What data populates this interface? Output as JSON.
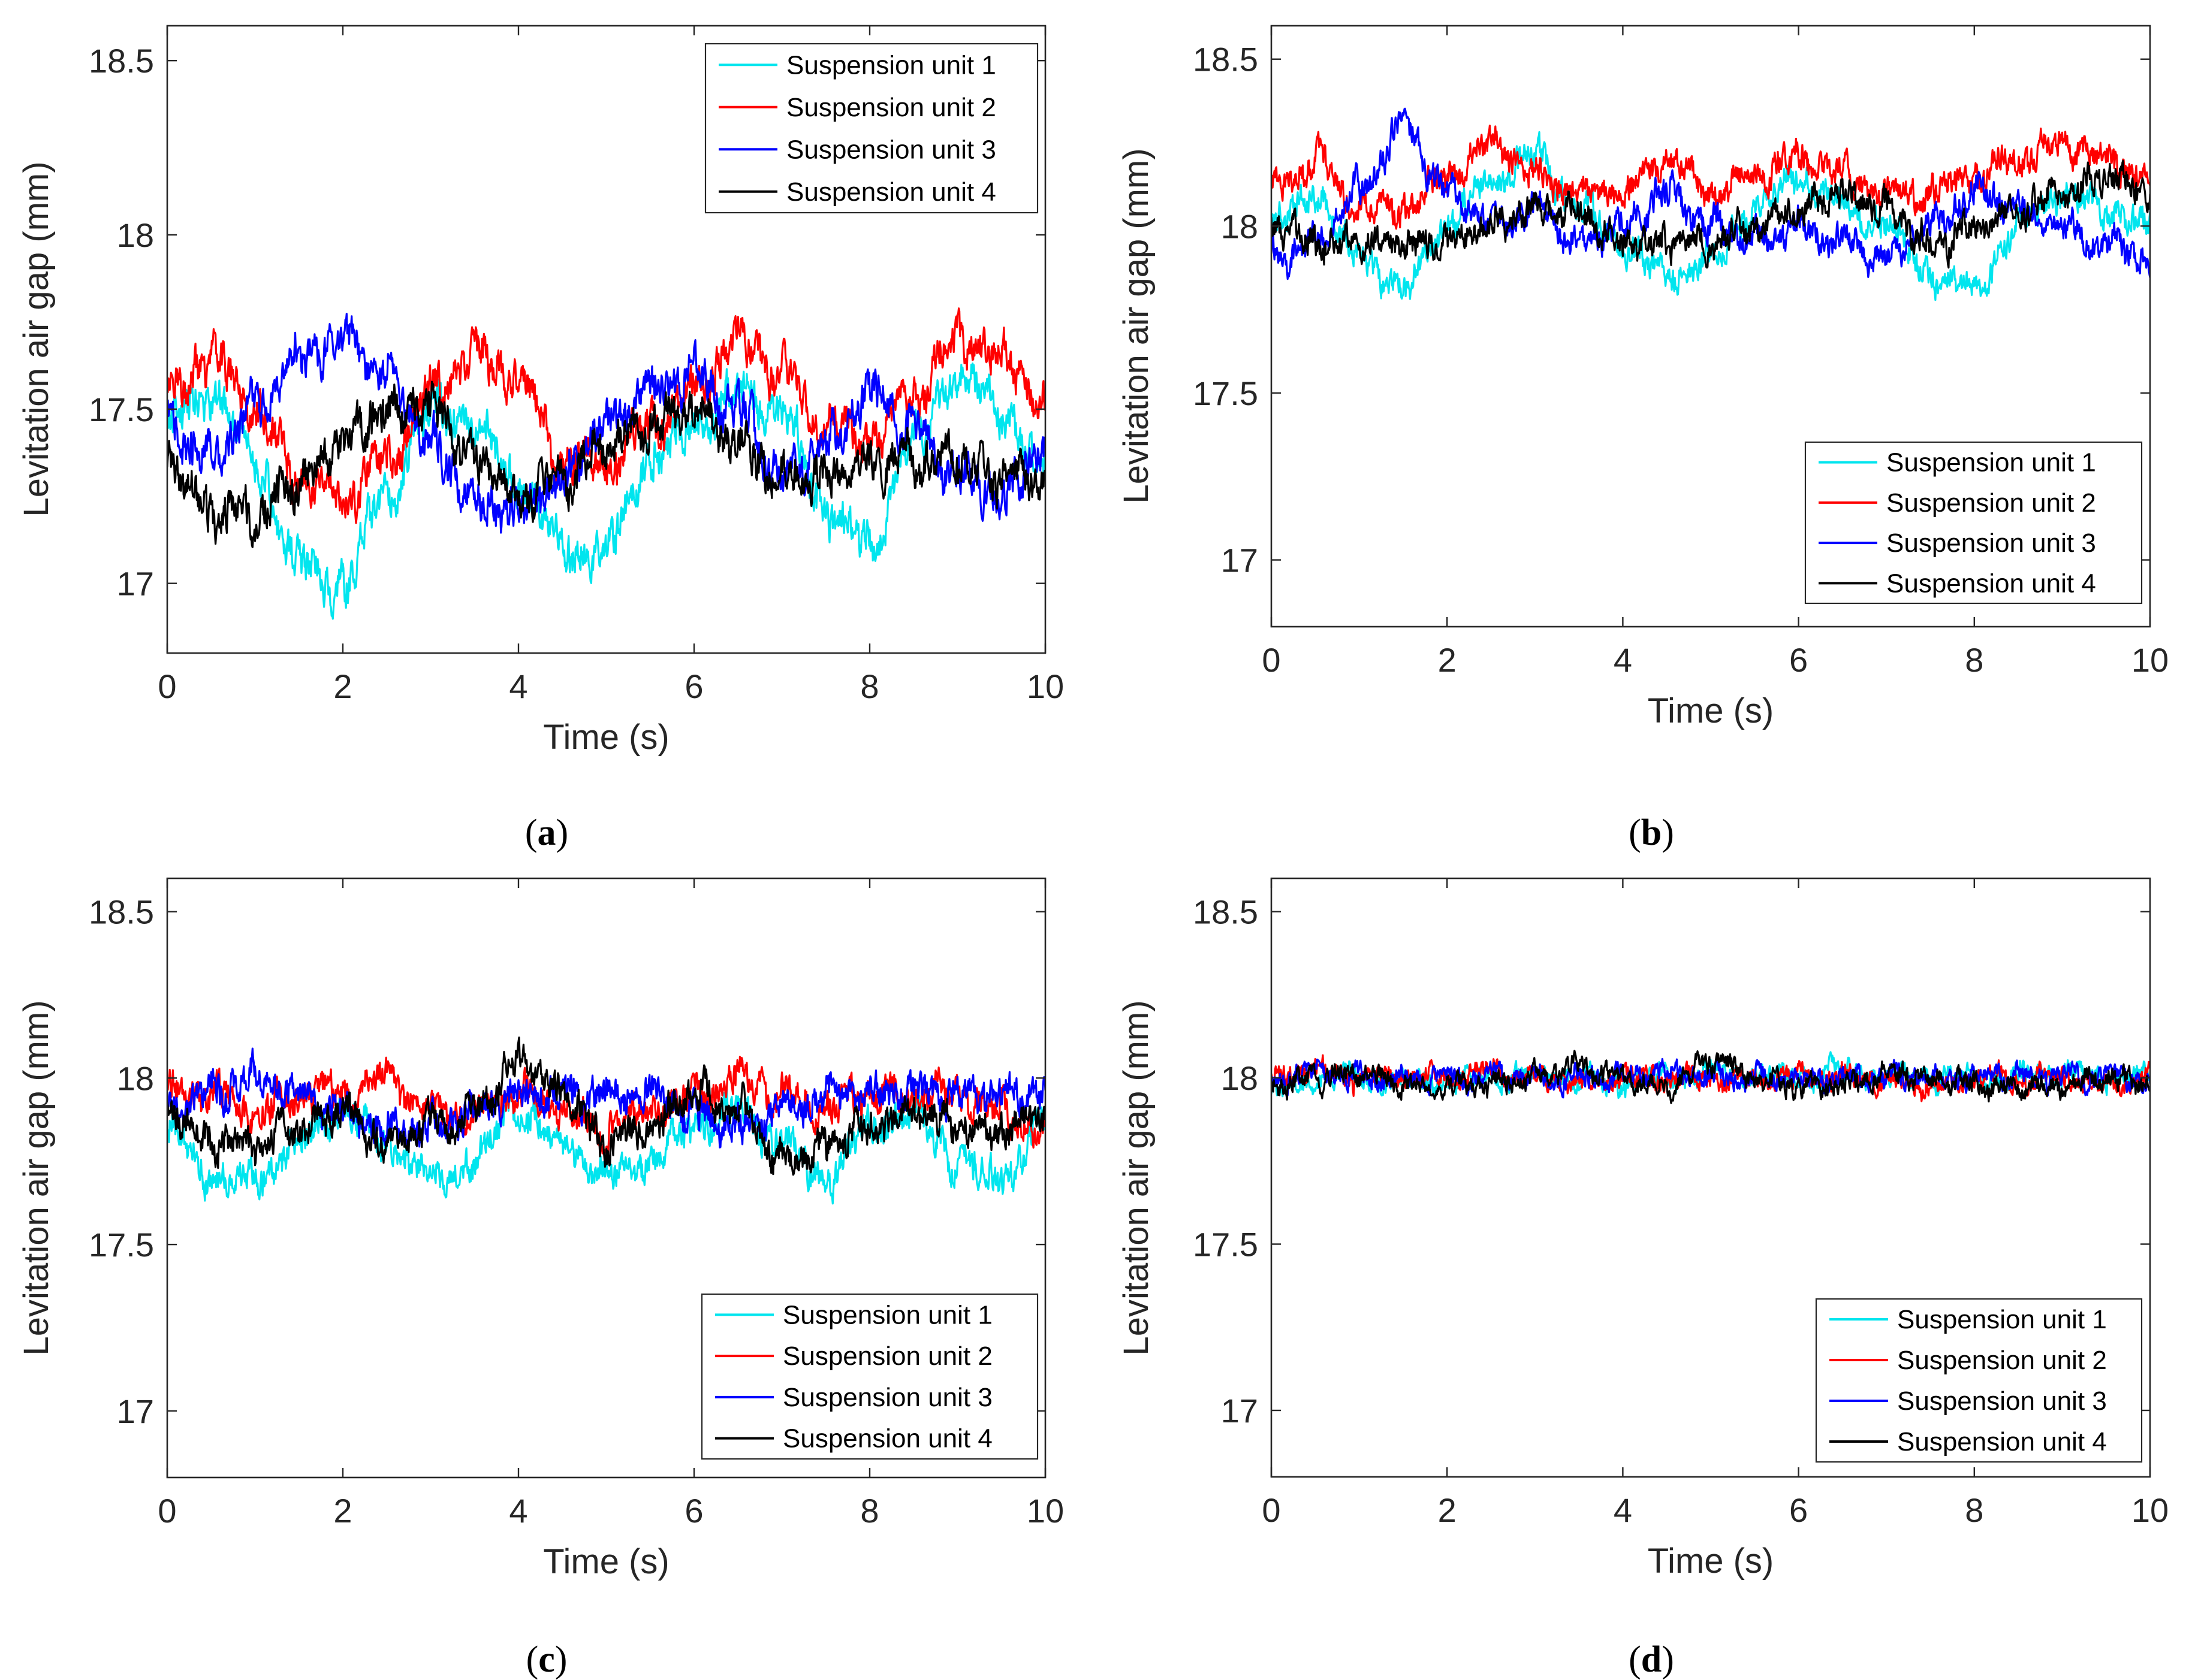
{
  "figure": {
    "series_names": [
      "Suspension unit 1",
      "Suspension unit 2",
      "Suspension unit 3",
      "Suspension unit 4"
    ],
    "series_colors": [
      "#00e5ee",
      "#ff0000",
      "#0000ff",
      "#000000"
    ]
  },
  "chart_data": [
    {
      "panel": "a",
      "caption": "(a)",
      "type": "line",
      "xlabel": "Time (s)",
      "ylabel": "Levitation air gap (mm)",
      "xlim": [
        0,
        10
      ],
      "ylim": [
        16.8,
        18.6
      ],
      "xticks": [
        0,
        2,
        4,
        6,
        8,
        10
      ],
      "yticks": [
        17,
        17.5,
        18,
        18.5
      ],
      "ytick_labels": [
        "17",
        "17.5",
        "18",
        "18.5"
      ],
      "legend_position": "top-right",
      "series": [
        {
          "name": "Suspension unit 1",
          "color": "#00e5ee",
          "x": [
            0,
            0.5,
            1,
            1.5,
            2,
            2.5,
            3,
            3.5,
            4,
            4.5,
            5,
            5.5,
            6,
            6.5,
            7,
            7.5,
            8,
            8.5,
            9,
            9.5,
            10
          ],
          "values": [
            17.45,
            17.55,
            17.35,
            17.05,
            17.0,
            17.25,
            17.5,
            17.45,
            17.3,
            17.1,
            17.1,
            17.35,
            17.45,
            17.55,
            17.5,
            17.2,
            17.1,
            17.4,
            17.6,
            17.5,
            17.3
          ]
        },
        {
          "name": "Suspension unit 2",
          "color": "#ff0000",
          "x": [
            0,
            0.5,
            1,
            1.5,
            2,
            2.5,
            3,
            3.5,
            4,
            4.5,
            5,
            5.5,
            6,
            6.5,
            7,
            7.5,
            8,
            8.5,
            9,
            9.5,
            10
          ],
          "values": [
            17.55,
            17.65,
            17.5,
            17.3,
            17.25,
            17.35,
            17.55,
            17.65,
            17.6,
            17.35,
            17.35,
            17.45,
            17.55,
            17.7,
            17.6,
            17.45,
            17.4,
            17.55,
            17.7,
            17.65,
            17.5
          ]
        },
        {
          "name": "Suspension unit 3",
          "color": "#0000ff",
          "x": [
            0,
            0.5,
            1,
            1.5,
            2,
            2.5,
            3,
            3.5,
            4,
            4.5,
            5,
            5.5,
            6,
            6.5,
            7,
            7.5,
            8,
            8.5,
            9,
            9.5,
            10
          ],
          "values": [
            17.45,
            17.35,
            17.5,
            17.65,
            17.7,
            17.6,
            17.4,
            17.25,
            17.2,
            17.3,
            17.45,
            17.55,
            17.6,
            17.5,
            17.3,
            17.4,
            17.55,
            17.45,
            17.3,
            17.25,
            17.4
          ]
        },
        {
          "name": "Suspension unit 4",
          "color": "#000000",
          "x": [
            0,
            0.5,
            1,
            1.5,
            2,
            2.5,
            3,
            3.5,
            4,
            4.5,
            5,
            5.5,
            6,
            6.5,
            7,
            7.5,
            8,
            8.5,
            9,
            9.5,
            10
          ],
          "values": [
            17.35,
            17.2,
            17.2,
            17.3,
            17.4,
            17.5,
            17.5,
            17.35,
            17.25,
            17.3,
            17.4,
            17.45,
            17.5,
            17.4,
            17.3,
            17.3,
            17.35,
            17.35,
            17.35,
            17.3,
            17.3
          ]
        }
      ]
    },
    {
      "panel": "b",
      "caption": "(b)",
      "type": "line",
      "xlabel": "Time (s)",
      "ylabel": "Levitation air gap (mm)",
      "xlim": [
        0,
        10
      ],
      "ylim": [
        16.8,
        18.6
      ],
      "xticks": [
        0,
        2,
        4,
        6,
        8,
        10
      ],
      "yticks": [
        17,
        17.5,
        18,
        18.5
      ],
      "ytick_labels": [
        "17",
        "17.5",
        "18",
        "18.5"
      ],
      "legend_position": "bottom-right",
      "series": [
        {
          "name": "Suspension unit 1",
          "color": "#00e5ee",
          "x": [
            0,
            0.5,
            1,
            1.5,
            2,
            2.5,
            3,
            3.5,
            4,
            4.5,
            5,
            5.5,
            6,
            6.5,
            7,
            7.5,
            8,
            8.5,
            9,
            9.5,
            10
          ],
          "values": [
            18.0,
            18.1,
            17.9,
            17.8,
            18.0,
            18.15,
            18.2,
            18.05,
            17.95,
            17.85,
            17.9,
            18.05,
            18.15,
            18.05,
            18.0,
            17.85,
            17.8,
            18.0,
            18.1,
            18.05,
            18.0
          ]
        },
        {
          "name": "Suspension unit 2",
          "color": "#ff0000",
          "x": [
            0,
            0.5,
            1,
            1.5,
            2,
            2.5,
            3,
            3.5,
            4,
            4.5,
            5,
            5.5,
            6,
            6.5,
            7,
            7.5,
            8,
            8.5,
            9,
            9.5,
            10
          ],
          "values": [
            18.1,
            18.2,
            18.05,
            18.05,
            18.15,
            18.25,
            18.15,
            18.1,
            18.1,
            18.2,
            18.1,
            18.15,
            18.2,
            18.15,
            18.1,
            18.1,
            18.15,
            18.2,
            18.25,
            18.2,
            18.15
          ]
        },
        {
          "name": "Suspension unit 3",
          "color": "#0000ff",
          "x": [
            0,
            0.5,
            1,
            1.5,
            2,
            2.5,
            3,
            3.5,
            4,
            4.5,
            5,
            5.5,
            6,
            6.5,
            7,
            7.5,
            8,
            8.5,
            9,
            9.5,
            10
          ],
          "values": [
            17.9,
            17.95,
            18.1,
            18.3,
            18.1,
            18.0,
            18.05,
            17.95,
            18.0,
            18.1,
            18.0,
            17.95,
            18.0,
            17.95,
            17.9,
            18.0,
            18.1,
            18.05,
            18.0,
            17.95,
            17.9
          ]
        },
        {
          "name": "Suspension unit 4",
          "color": "#000000",
          "x": [
            0,
            0.5,
            1,
            1.5,
            2,
            2.5,
            3,
            3.5,
            4,
            4.5,
            5,
            5.5,
            6,
            6.5,
            7,
            7.5,
            8,
            8.5,
            9,
            9.5,
            10
          ],
          "values": [
            18.0,
            17.95,
            17.95,
            17.95,
            17.95,
            18.0,
            18.05,
            18.05,
            17.95,
            17.95,
            17.95,
            18.0,
            18.05,
            18.1,
            18.05,
            17.95,
            18.0,
            18.05,
            18.1,
            18.15,
            18.1
          ]
        }
      ]
    },
    {
      "panel": "c",
      "caption": "(c)",
      "type": "line",
      "xlabel": "Time (s)",
      "ylabel": "Levitation air gap (mm)",
      "xlim": [
        0,
        10
      ],
      "ylim": [
        16.8,
        18.6
      ],
      "xticks": [
        0,
        2,
        4,
        6,
        8,
        10
      ],
      "yticks": [
        17,
        17.5,
        18,
        18.5
      ],
      "ytick_labels": [
        "17",
        "17.5",
        "18",
        "18.5"
      ],
      "legend_position": "bottom-right",
      "series": [
        {
          "name": "Suspension unit 1",
          "color": "#00e5ee",
          "x": [
            0,
            0.5,
            1,
            1.5,
            2,
            2.5,
            3,
            3.5,
            4,
            4.5,
            5,
            5.5,
            6,
            6.5,
            7,
            7.5,
            8,
            8.5,
            9,
            9.5,
            10
          ],
          "values": [
            17.85,
            17.7,
            17.7,
            17.8,
            17.9,
            17.8,
            17.7,
            17.75,
            17.9,
            17.8,
            17.7,
            17.75,
            17.85,
            17.9,
            17.8,
            17.7,
            17.85,
            17.9,
            17.75,
            17.7,
            17.85
          ]
        },
        {
          "name": "Suspension unit 2",
          "color": "#ff0000",
          "x": [
            0,
            0.5,
            1,
            1.5,
            2,
            2.5,
            3,
            3.5,
            4,
            4.5,
            5,
            5.5,
            6,
            6.5,
            7,
            7.5,
            8,
            8.5,
            9,
            9.5,
            10
          ],
          "values": [
            17.95,
            17.95,
            17.9,
            17.95,
            17.95,
            18.0,
            17.9,
            17.9,
            17.95,
            17.9,
            17.85,
            17.9,
            17.95,
            18.0,
            17.95,
            17.9,
            17.95,
            17.95,
            17.95,
            17.9,
            17.85
          ]
        },
        {
          "name": "Suspension unit 3",
          "color": "#0000ff",
          "x": [
            0,
            0.5,
            1,
            1.5,
            2,
            2.5,
            3,
            3.5,
            4,
            4.5,
            5,
            5.5,
            6,
            6.5,
            7,
            7.5,
            8,
            8.5,
            9,
            9.5,
            10
          ],
          "values": [
            17.9,
            17.95,
            18.0,
            17.95,
            17.9,
            17.85,
            17.85,
            17.9,
            17.95,
            17.95,
            17.95,
            17.95,
            17.9,
            17.85,
            17.9,
            17.95,
            17.95,
            17.95,
            17.95,
            17.95,
            17.95
          ]
        },
        {
          "name": "Suspension unit 4",
          "color": "#000000",
          "x": [
            0,
            0.5,
            1,
            1.5,
            2,
            2.5,
            3,
            3.5,
            4,
            4.5,
            5,
            5.5,
            6,
            6.5,
            7,
            7.5,
            8,
            8.5,
            9,
            9.5,
            10
          ],
          "values": [
            17.9,
            17.8,
            17.8,
            17.85,
            17.9,
            17.8,
            17.85,
            17.9,
            18.05,
            17.95,
            17.8,
            17.85,
            17.95,
            17.9,
            17.75,
            17.8,
            17.85,
            17.9,
            17.85,
            17.85,
            17.9
          ]
        }
      ]
    },
    {
      "panel": "d",
      "caption": "(d)",
      "type": "line",
      "xlabel": "Time (s)",
      "ylabel": "Levitation air gap (mm)",
      "xlim": [
        0,
        10
      ],
      "ylim": [
        16.8,
        18.6
      ],
      "xticks": [
        0,
        2,
        4,
        6,
        8,
        10
      ],
      "yticks": [
        17,
        17.5,
        18,
        18.5
      ],
      "ytick_labels": [
        "17",
        "17.5",
        "18",
        "18.5"
      ],
      "legend_position": "bottom-right",
      "series": [
        {
          "name": "Suspension unit 1",
          "color": "#00e5ee",
          "x": [
            0,
            0.5,
            1,
            1.5,
            2,
            2.5,
            3,
            3.5,
            4,
            4.5,
            5,
            5.5,
            6,
            6.5,
            7,
            7.5,
            8,
            8.5,
            9,
            9.5,
            10
          ],
          "values": [
            17.95,
            18.0,
            18.0,
            17.98,
            18.0,
            18.0,
            18.0,
            18.0,
            17.98,
            18.0,
            18.02,
            18.0,
            18.0,
            18.02,
            18.0,
            18.0,
            18.0,
            18.0,
            18.02,
            18.0,
            18.0
          ]
        },
        {
          "name": "Suspension unit 2",
          "color": "#ff0000",
          "x": [
            0,
            0.5,
            1,
            1.5,
            2,
            2.5,
            3,
            3.5,
            4,
            4.5,
            5,
            5.5,
            6,
            6.5,
            7,
            7.5,
            8,
            8.5,
            9,
            9.5,
            10
          ],
          "values": [
            18.0,
            18.02,
            18.0,
            18.0,
            18.0,
            18.02,
            18.0,
            17.98,
            18.0,
            18.0,
            18.0,
            18.0,
            18.0,
            18.0,
            18.0,
            17.98,
            18.0,
            18.0,
            18.0,
            17.98,
            18.0
          ]
        },
        {
          "name": "Suspension unit 3",
          "color": "#0000ff",
          "x": [
            0,
            0.5,
            1,
            1.5,
            2,
            2.5,
            3,
            3.5,
            4,
            4.5,
            5,
            5.5,
            6,
            6.5,
            7,
            7.5,
            8,
            8.5,
            9,
            9.5,
            10
          ],
          "values": [
            17.98,
            18.02,
            18.0,
            18.0,
            18.0,
            18.0,
            18.0,
            18.0,
            18.0,
            18.02,
            18.0,
            18.0,
            18.0,
            18.0,
            18.0,
            18.0,
            18.0,
            18.0,
            18.0,
            18.0,
            18.0
          ]
        },
        {
          "name": "Suspension unit 4",
          "color": "#000000",
          "x": [
            0,
            0.5,
            1,
            1.5,
            2,
            2.5,
            3,
            3.5,
            4,
            4.5,
            5,
            5.5,
            6,
            6.5,
            7,
            7.5,
            8,
            8.5,
            9,
            9.5,
            10
          ],
          "values": [
            17.98,
            18.0,
            18.02,
            17.98,
            17.97,
            17.98,
            18.0,
            18.03,
            18.0,
            17.97,
            18.05,
            18.0,
            17.97,
            17.98,
            18.02,
            18.0,
            17.98,
            17.97,
            17.98,
            18.0,
            17.98
          ]
        }
      ]
    }
  ]
}
